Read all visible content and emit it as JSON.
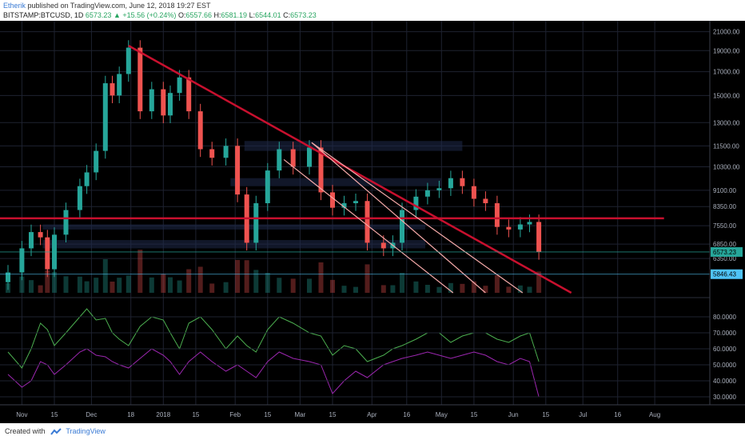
{
  "header": {
    "author": "Etherik",
    "published": "published on TradingView.com, June 12, 2018 19:27 EST",
    "symbol": "BITSTAMP:BTCUSD, 1D",
    "last": "6573.23",
    "arrow": "▲",
    "change": "+15.56 (+0.24%)",
    "o_label": "O:",
    "o": "6557.66",
    "h_label": "H:",
    "h": "6581.19",
    "l_label": "L:",
    "l": "6544.01",
    "c_label": "C:",
    "c": "6573.23"
  },
  "footer": {
    "created_with": "Created with",
    "brand": "TradingView"
  },
  "colors": {
    "background": "#000000",
    "up": "#26a69a",
    "down": "#ef5350",
    "trendline": "#c8102e",
    "channel": "#f4a9a8",
    "rsi_upper": "#4caf50",
    "rsi_lower": "#9c27b0",
    "rsi_orange": "#ff9800"
  },
  "chart_data": {
    "type": "candlestick",
    "symbol": "BITSTAMP:BTCUSD",
    "interval": "1D",
    "y_axis_log": true,
    "y_ticks": [
      21000,
      19000,
      17000,
      15000,
      13000,
      11500,
      10300,
      9100,
      8350,
      7550,
      6850,
      6350
    ],
    "y_tick_labels": [
      "21000.00",
      "19000.00",
      "17000.00",
      "15000.00",
      "13000.00",
      "11500.00",
      "10300.00",
      "9100.00",
      "8350.00",
      "7550.00",
      "6850.00",
      "6350.00"
    ],
    "price_labels": [
      {
        "value": 6573.23,
        "text": "6573.23",
        "color": "#26a69a"
      },
      {
        "value": 5846.43,
        "text": "5846.43",
        "color": "#4fc3f7"
      }
    ],
    "x_tick_labels": [
      "Nov",
      "15",
      "Dec",
      "18",
      "2018",
      "15",
      "Feb",
      "15",
      "Mar",
      "15",
      "Apr",
      "16",
      "May",
      "15",
      "Jun",
      "15",
      "Jul",
      "16",
      "Aug"
    ],
    "x_tick_dates": [
      "2017-11-01",
      "2017-11-15",
      "2017-12-01",
      "2017-12-18",
      "2018-01-01",
      "2018-01-15",
      "2018-02-01",
      "2018-02-15",
      "2018-03-01",
      "2018-03-15",
      "2018-04-01",
      "2018-04-16",
      "2018-05-01",
      "2018-05-15",
      "2018-06-01",
      "2018-06-15",
      "2018-07-01",
      "2018-07-16",
      "2018-08-01"
    ],
    "price_series": {
      "dates": [
        "2017-10-26",
        "2017-11-01",
        "2017-11-05",
        "2017-11-09",
        "2017-11-12",
        "2017-11-15",
        "2017-11-20",
        "2017-11-26",
        "2017-11-29",
        "2017-12-03",
        "2017-12-07",
        "2017-12-10",
        "2017-12-13",
        "2017-12-17",
        "2017-12-22",
        "2017-12-27",
        "2018-01-01",
        "2018-01-04",
        "2018-01-08",
        "2018-01-12",
        "2018-01-17",
        "2018-01-22",
        "2018-01-28",
        "2018-02-02",
        "2018-02-06",
        "2018-02-10",
        "2018-02-15",
        "2018-02-20",
        "2018-02-26",
        "2018-03-05",
        "2018-03-10",
        "2018-03-15",
        "2018-03-20",
        "2018-03-25",
        "2018-03-30",
        "2018-04-06",
        "2018-04-10",
        "2018-04-14",
        "2018-04-20",
        "2018-04-25",
        "2018-04-30",
        "2018-05-05",
        "2018-05-10",
        "2018-05-15",
        "2018-05-20",
        "2018-05-25",
        "2018-05-30",
        "2018-06-04",
        "2018-06-08",
        "2018-06-12"
      ],
      "close": [
        5900,
        6700,
        7300,
        7100,
        6000,
        7200,
        8200,
        9300,
        10000,
        11200,
        16000,
        15000,
        16800,
        19300,
        13800,
        15500,
        13500,
        15200,
        16500,
        13800,
        11300,
        10800,
        11500,
        8900,
        6900,
        8500,
        10100,
        11300,
        10300,
        11400,
        9000,
        8300,
        8500,
        8600,
        6900,
        6700,
        6900,
        8200,
        8800,
        9100,
        9200,
        9700,
        9300,
        8700,
        8500,
        7500,
        7400,
        7600,
        7700,
        6573
      ]
    },
    "trendlines": [
      {
        "color": "#c8102e",
        "from": {
          "date": "2017-12-17",
          "value": 19500
        },
        "to": {
          "date": "2018-06-26",
          "value": 5300
        }
      },
      {
        "color": "#c8102e",
        "from": {
          "date": "2017-10-22",
          "value": 7850
        },
        "to": {
          "date": "2018-08-05",
          "value": 7850
        }
      }
    ],
    "channel_lines": [
      {
        "from": {
          "date": "2018-02-22",
          "value": 10700
        },
        "to": {
          "date": "2018-05-06",
          "value": 5300
        }
      },
      {
        "from": {
          "date": "2018-03-06",
          "value": 11700
        },
        "to": {
          "date": "2018-05-20",
          "value": 5300
        }
      },
      {
        "from": {
          "date": "2018-03-06",
          "value": 11700
        },
        "to": {
          "date": "2018-06-05",
          "value": 5300
        }
      }
    ],
    "rsi_axis": {
      "ticks": [
        80,
        70,
        60,
        50,
        40,
        30
      ],
      "labels": [
        "80.0000",
        "70.0000",
        "60.0000",
        "50.0000",
        "40.0000",
        "30.0000"
      ]
    },
    "oscillator_series": {
      "upper": [
        58,
        48,
        60,
        76,
        72,
        62,
        70,
        80,
        85,
        78,
        79,
        70,
        66,
        62,
        74,
        80,
        78,
        70,
        60,
        76,
        80,
        72,
        60,
        68,
        62,
        58,
        72,
        80,
        76,
        70,
        68,
        56,
        62,
        60,
        52,
        56,
        60,
        62,
        66,
        70,
        70,
        64,
        68,
        70,
        70,
        66,
        64,
        68,
        70,
        52
      ],
      "lower": [
        44,
        36,
        40,
        52,
        50,
        44,
        50,
        58,
        60,
        56,
        55,
        52,
        50,
        48,
        54,
        60,
        56,
        52,
        44,
        52,
        58,
        52,
        46,
        50,
        46,
        42,
        52,
        58,
        54,
        52,
        50,
        32,
        40,
        46,
        42,
        50,
        52,
        54,
        56,
        58,
        56,
        54,
        56,
        58,
        56,
        52,
        50,
        54,
        52,
        30
      ]
    }
  }
}
